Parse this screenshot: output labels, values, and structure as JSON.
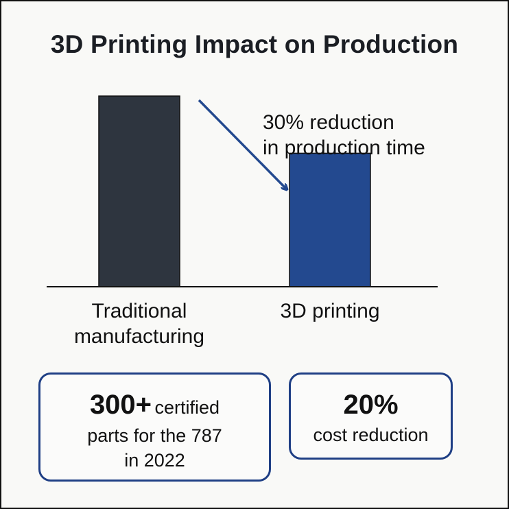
{
  "chart_data": {
    "type": "bar",
    "title": "3D Printing Impact on Production",
    "categories": [
      "Traditional manufacturing",
      "3D printing"
    ],
    "category_lines": [
      [
        "Traditional",
        "manufacturing"
      ],
      [
        "3D printing"
      ]
    ],
    "values": [
      100,
      70
    ],
    "ylim": [
      0,
      100
    ],
    "bar_colors": [
      "#2e353f",
      "#23498f"
    ],
    "annotation": {
      "lines": [
        "30% reduction",
        "in production time"
      ],
      "arrow_color": "#23498f"
    }
  },
  "stats": {
    "box1": {
      "big": "300+",
      "line1_rest": "certified",
      "line2": "parts for the 787",
      "line3": "in 2022"
    },
    "box2": {
      "big": "20%",
      "line2": "cost reduction"
    }
  },
  "colors": {
    "box_border": "#1f3f85",
    "axis": "#111111"
  }
}
